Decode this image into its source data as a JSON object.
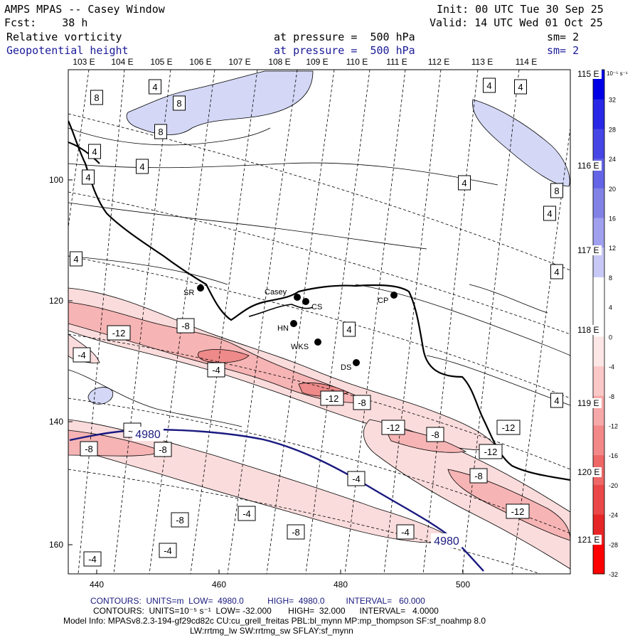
{
  "header": {
    "title": "AMPS MPAS -- Casey Window",
    "forecast": "Fcst:    38 h",
    "init": "Init: 00 UTC Tue 30 Sep 25",
    "valid": "Valid: 14 UTC Wed 01 Oct 25",
    "field1_name": "Relative vorticity",
    "field1_level": "at pressure =  500 hPa",
    "field1_smooth": "sm= 2",
    "field2_name": "Geopotential height",
    "field2_level": "at pressure =  500 hPa",
    "field2_smooth": "sm= 2"
  },
  "longitude_labels_top": [
    "103 E",
    "104 E",
    "105 E",
    "106 E",
    "107 E",
    "108 E",
    "109 E",
    "110 E",
    "111 E",
    "112 E",
    "113 E",
    "114 E"
  ],
  "longitude_labels_right": [
    "115 E",
    "116 E",
    "117 E",
    "118 E",
    "119 E",
    "120 E",
    "121 E"
  ],
  "y_axis_ticks": [
    "100",
    "120",
    "140",
    "160"
  ],
  "x_axis_ticks": [
    "440",
    "460",
    "480",
    "500"
  ],
  "stations": [
    {
      "name": "SR"
    },
    {
      "name": "Casey"
    },
    {
      "name": "CS"
    },
    {
      "name": "CP"
    },
    {
      "name": "HN"
    },
    {
      "name": "WKS"
    },
    {
      "name": "DS"
    }
  ],
  "contour_labels": [
    "8",
    "4",
    "8",
    "8",
    "4",
    "4",
    "4",
    "4",
    "4",
    "4",
    "8",
    "4",
    "4",
    "4",
    "-12",
    "-8",
    "4",
    "-4",
    "-4",
    "-12",
    "-8",
    "-12",
    "-8",
    "4",
    "-12",
    "-8",
    "-8",
    "-12",
    "-4",
    "-8",
    "-4",
    "-12",
    "-8",
    "-8",
    "-4",
    "-4",
    "-4",
    "-4"
  ],
  "height_labels": [
    "4980",
    "4980"
  ],
  "colorbar": {
    "units": "10⁻⁵ s⁻¹",
    "labels": [
      "32",
      "28",
      "24",
      "20",
      "16",
      "12",
      "8",
      "4",
      "0",
      "-4",
      "-8",
      "-12",
      "-16",
      "-20",
      "-24",
      "-28",
      "-32"
    ],
    "colors": [
      "#0000e6",
      "#2828e6",
      "#4646e6",
      "#6464e6",
      "#8282e6",
      "#a0a0ee",
      "#c8c8f6",
      "#ffffff",
      "#ffffff",
      "#fde6e6",
      "#fbc8c8",
      "#f7a8a8",
      "#f38888",
      "#ee6868",
      "#ea4848",
      "#e62626",
      "#ff0000"
    ]
  },
  "colors": {
    "positive": "#d4d8f6",
    "negative_light": "#fbdcdc",
    "negative_mid": "#f6b4b4",
    "negative_dark": "#ee8a8a",
    "height_contour": "#1a1a80"
  },
  "footer": {
    "line1": "CONTOURS:  UNITS=m  LOW=  4980.0          HIGH=  4980.0         INTERVAL=   60.000",
    "line2": "CONTOURS:  UNITS=10⁻⁵ s⁻¹  LOW= -32.000       HIGH=  32.000      INTERVAL=   4.0000",
    "line3": "Model Info: MPASv8.2.3-194-gf29cd82c CU:cu_grell_freitas PBL:bl_mynn MP:mp_thompson SF:sf_noahmp 8.0",
    "line4": "LW:rrtmg_lw SW:rrtmg_sw SFLAY:sf_mynn"
  }
}
